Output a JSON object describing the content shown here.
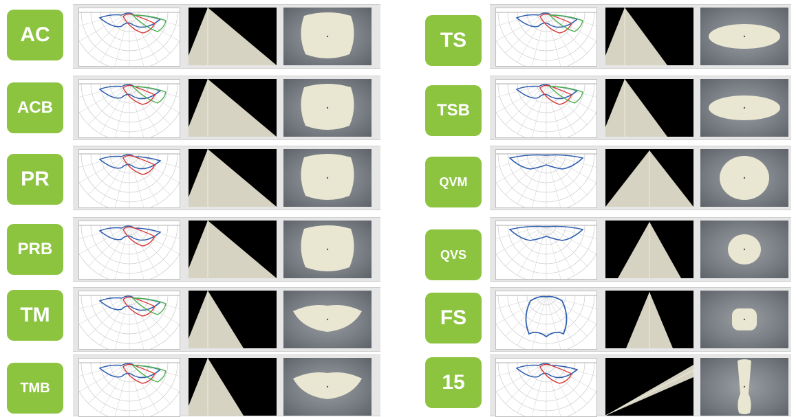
{
  "colors": {
    "label_bg": "#8cc43f",
    "label_text": "#ffffff",
    "curve_blue": "#2f5fb0",
    "curve_red": "#d63a3a",
    "curve_green": "#4caf50",
    "beam": "#d6d3c2",
    "footprint": "#e9e6d2"
  },
  "left_rows": [
    {
      "label": "AC",
      "polar": {
        "green": true
      },
      "cone": "wide",
      "footprint": "rounded-rect"
    },
    {
      "label": "ACB",
      "polar": {
        "green": true
      },
      "cone": "wide",
      "footprint": "rounded-rect"
    },
    {
      "label": "PR",
      "polar": {
        "green": false
      },
      "cone": "wide",
      "footprint": "rounded-rect"
    },
    {
      "label": "PRB",
      "polar": {
        "green": false
      },
      "cone": "wide",
      "footprint": "rounded-rect"
    },
    {
      "label": "TM",
      "polar": {
        "green": true
      },
      "cone": "medium",
      "footprint": "wide-oval"
    },
    {
      "label": "TMB",
      "polar": {
        "green": true
      },
      "cone": "medium",
      "footprint": "wide-oval"
    }
  ],
  "right_rows": [
    {
      "label": "TS",
      "polar": {
        "green": true
      },
      "cone": "narrow-left",
      "footprint": "long-oval"
    },
    {
      "label": "TSB",
      "polar": {
        "green": true
      },
      "cone": "narrow-left",
      "footprint": "long-oval"
    },
    {
      "label": "QVM",
      "polar": {
        "green": false
      },
      "cone": "symmetric-wide",
      "footprint": "circle"
    },
    {
      "label": "QVS",
      "polar": {
        "green": false
      },
      "cone": "symmetric",
      "footprint": "circle-small"
    },
    {
      "label": "FS",
      "polar": {
        "green": false
      },
      "cone": "symmetric-narrow",
      "footprint": "square-small"
    },
    {
      "label": "15",
      "polar": {
        "green": false
      },
      "cone": "tilted",
      "footprint": "elongated"
    }
  ]
}
